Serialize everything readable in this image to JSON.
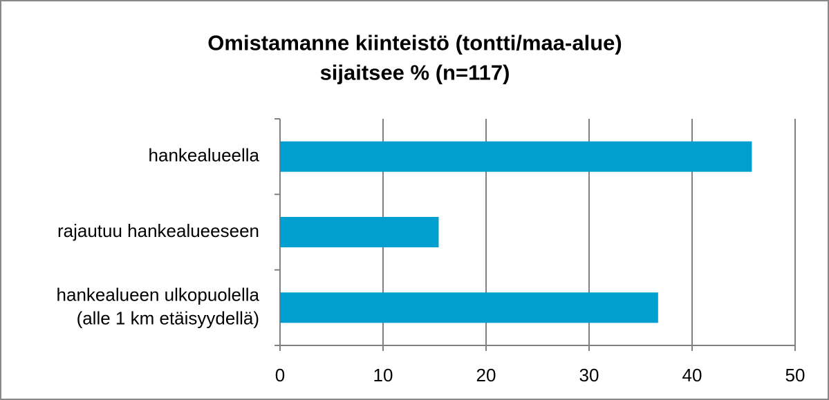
{
  "chart_data": {
    "type": "hbar",
    "title": "Omistamanne kiinteistö (tontti/maa-alue)\nsijaitsee % (n=117)",
    "categories": [
      "hankealueella",
      "rajautuu hankealueeseen",
      "hankealueen ulkopuolella\n(alle 1 km etäisyydellä)"
    ],
    "values": [
      45.8,
      15.4,
      36.7
    ],
    "color": "#009fd0",
    "xlim": [
      0,
      50
    ],
    "xticks": [
      0,
      10,
      20,
      30,
      40,
      50
    ],
    "grid": true
  }
}
